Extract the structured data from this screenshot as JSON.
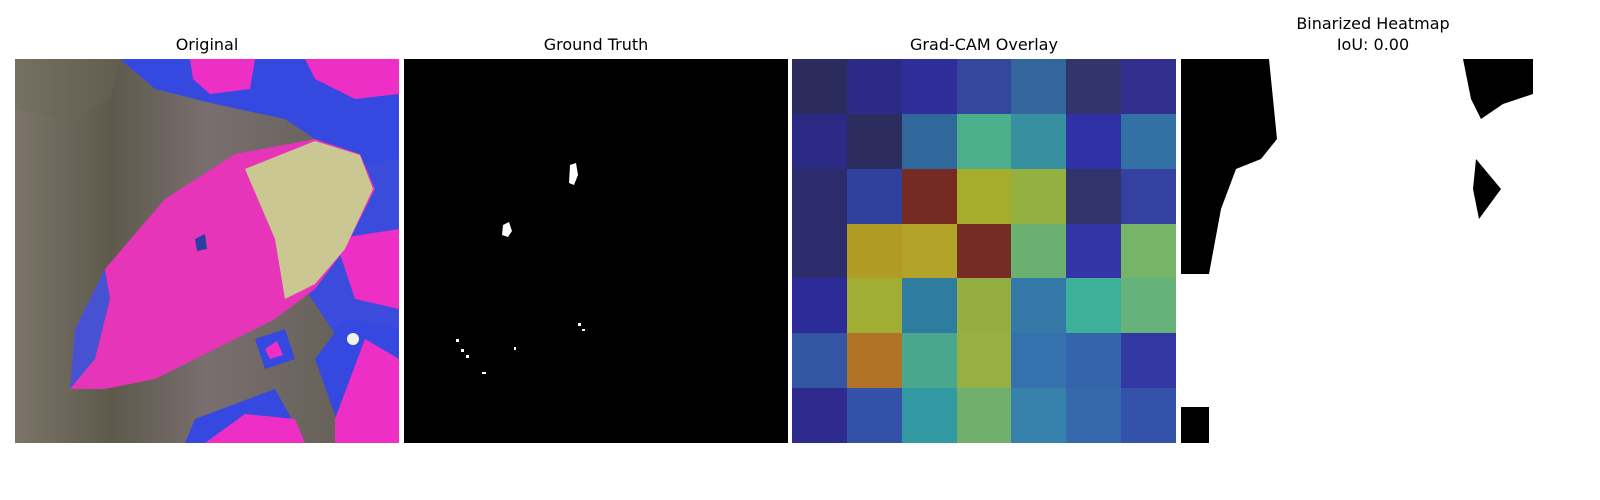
{
  "panels": {
    "original": {
      "title": "Original"
    },
    "ground_truth": {
      "title": "Ground Truth"
    },
    "gradcam": {
      "title": "Grad-CAM Overlay",
      "grid_colors": [
        [
          "#2b2b5e",
          "#2b2a86",
          "#2e2d9a",
          "#33489c",
          "#33669b",
          "#33346a",
          "#322f8e"
        ],
        [
          "#2b2b86",
          "#2c2c5e",
          "#30689c",
          "#4aaf8a",
          "#3690a0",
          "#3031a6",
          "#3370a3"
        ],
        [
          "#2c2c6c",
          "#2f419c",
          "#752b22",
          "#a6ad2c",
          "#94b041",
          "#33336c",
          "#3441a1"
        ],
        [
          "#2d2d6e",
          "#b09c24",
          "#b3a328",
          "#762c24",
          "#6ab171",
          "#3334a6",
          "#76b468"
        ],
        [
          "#2d2b98",
          "#a1ae35",
          "#2f7ca1",
          "#95ae42",
          "#3479a7",
          "#3eb19a",
          "#65b27b"
        ],
        [
          "#3256a2",
          "#b07328",
          "#49a78e",
          "#97b044",
          "#3571ad",
          "#3464ab",
          "#3339a3"
        ],
        [
          "#2f2a8d",
          "#3352a7",
          "#3299a3",
          "#70b06c",
          "#3682ad",
          "#3669ab",
          "#3552aa"
        ]
      ]
    },
    "binarized": {
      "title_line1": "Binarized Heatmap",
      "title_line2": "IoU: 0.00"
    }
  }
}
